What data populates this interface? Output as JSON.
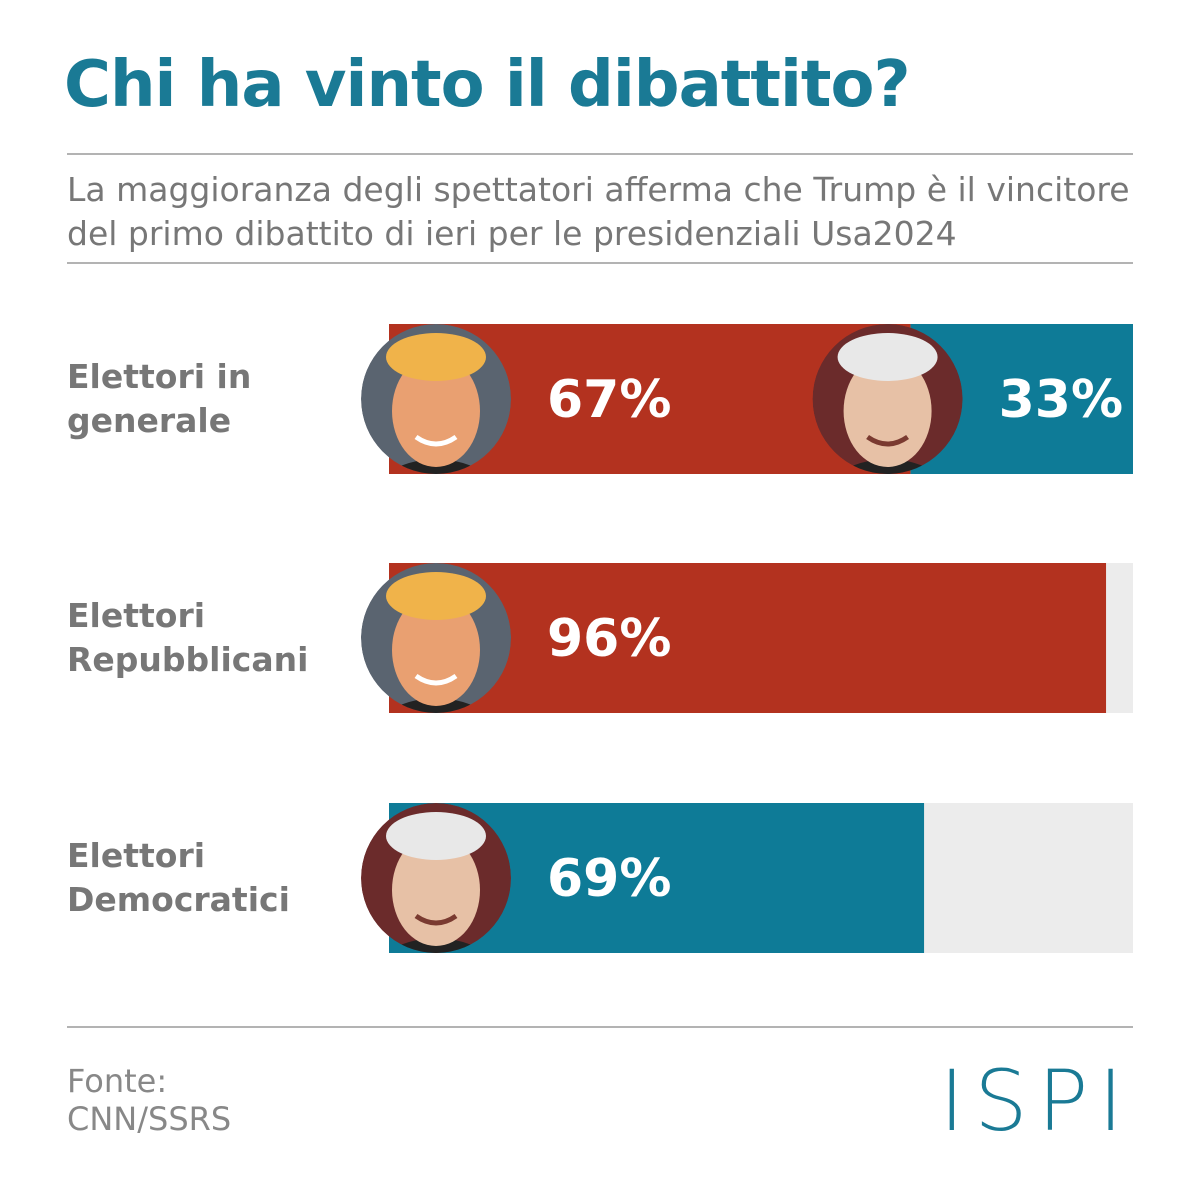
{
  "chart_data": {
    "type": "bar",
    "title": "Chi ha vinto il dibattito?",
    "subtitle": "La maggioranza degli spettatori afferma che Trump è il vincitore del primo dibattito di ieri per le presidenziali Usa2024",
    "categories": [
      "Elettori in generale",
      "Elettori Repubblicani",
      "Elettori Democratici"
    ],
    "series": [
      {
        "color": "#b3321f",
        "values": [
          67,
          96,
          null
        ],
        "value_labels": [
          "67%",
          "96%",
          null
        ]
      },
      {
        "color": "#0e7b97",
        "values": [
          33,
          null,
          69
        ],
        "value_labels": [
          "33%",
          null,
          "69%"
        ]
      }
    ],
    "xlim": [
      0,
      100
    ],
    "source_label": "Fonte:",
    "source": "CNN/SSRS",
    "logo": "ISPI"
  }
}
